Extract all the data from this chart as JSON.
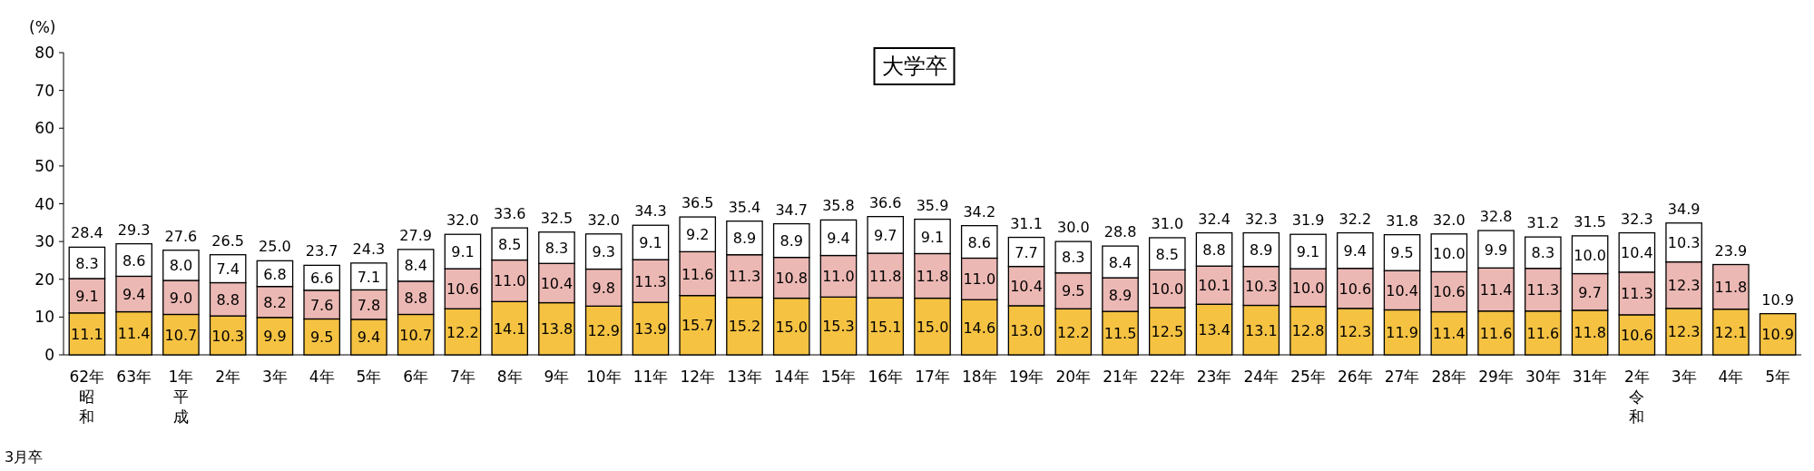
{
  "chart_data": {
    "type": "bar",
    "stacked": true,
    "title": "大学卒",
    "ylabel": "(%)",
    "annotations": [
      "3月卒"
    ],
    "categories": [
      "62年昭和",
      "63年",
      "1年平成",
      "2年",
      "3年",
      "4年",
      "5年",
      "6年",
      "7年",
      "8年",
      "9年",
      "10年",
      "11年",
      "12年",
      "13年",
      "14年",
      "15年",
      "16年",
      "17年",
      "18年",
      "19年",
      "20年",
      "21年",
      "22年",
      "23年",
      "24年",
      "25年",
      "26年",
      "27年",
      "28年",
      "29年",
      "30年",
      "31年",
      "2年令和",
      "3年",
      "4年",
      "5年"
    ],
    "series": [
      {
        "color": "#f5c242",
        "values": [
          11.1,
          11.4,
          10.7,
          10.3,
          9.9,
          9.5,
          9.4,
          10.7,
          12.2,
          14.1,
          13.8,
          12.9,
          13.9,
          15.7,
          15.2,
          15.0,
          15.3,
          15.1,
          15.0,
          14.6,
          13.0,
          12.2,
          11.5,
          12.5,
          13.4,
          13.1,
          12.8,
          12.3,
          11.9,
          11.4,
          11.6,
          11.6,
          11.8,
          10.6,
          12.3,
          12.1,
          10.9
        ],
        "value_labels": [
          "11.1",
          "11.4",
          "10.7",
          "10.3",
          "9.9",
          "9.5",
          "9.4",
          "10.7",
          "12.2",
          "14.1",
          "13.8",
          "12.9",
          "13.9",
          "15.7",
          "15.2",
          "15.0",
          "15.3",
          "15.1",
          "15.0",
          "14.6",
          "13.0",
          "12.2",
          "11.5",
          "12.5",
          "13.4",
          "13.1",
          "12.8",
          "12.3",
          "11.9",
          "11.4",
          "11.6",
          "11.6",
          "11.8",
          "10.6",
          "12.3",
          "12.1",
          "10.9"
        ]
      },
      {
        "color": "#ecb8b4",
        "values": [
          9.1,
          9.4,
          9.0,
          8.8,
          8.2,
          7.6,
          7.8,
          8.8,
          10.6,
          11.0,
          10.4,
          9.8,
          11.3,
          11.6,
          11.3,
          10.8,
          11.0,
          11.8,
          11.8,
          11.0,
          10.4,
          9.5,
          8.9,
          10.0,
          10.1,
          10.3,
          10.0,
          10.6,
          10.4,
          10.6,
          11.4,
          11.3,
          9.7,
          11.3,
          12.3,
          11.8,
          null
        ],
        "value_labels": [
          "9.1",
          "9.4",
          "9.0",
          "8.8",
          "8.2",
          "7.6",
          "7.8",
          "8.8",
          "10.6",
          "11.0",
          "10.4",
          "9.8",
          "11.3",
          "11.6",
          "11.3",
          "10.8",
          "11.0",
          "11.8",
          "11.8",
          "11.0",
          "10.4",
          "9.5",
          "8.9",
          "10.0",
          "10.1",
          "10.3",
          "10.0",
          "10.6",
          "10.4",
          "10.6",
          "11.4",
          "11.3",
          "9.7",
          "11.3",
          "12.3",
          "11.8",
          null
        ]
      },
      {
        "color": "#ffffff",
        "values": [
          8.3,
          8.6,
          8.0,
          7.4,
          6.8,
          6.6,
          7.1,
          8.4,
          9.1,
          8.5,
          8.3,
          9.3,
          9.1,
          9.2,
          8.9,
          8.9,
          9.4,
          9.7,
          9.1,
          8.6,
          7.7,
          8.3,
          8.4,
          8.5,
          8.8,
          8.9,
          9.1,
          9.4,
          9.5,
          10.0,
          9.9,
          8.3,
          10.0,
          10.4,
          10.3,
          null,
          null
        ],
        "value_labels": [
          "8.3",
          "8.6",
          "8.0",
          "7.4",
          "6.8",
          "6.6",
          "7.1",
          "8.4",
          "9.1",
          "8.5",
          "8.3",
          "9.3",
          "9.1",
          "9.2",
          "8.9",
          "8.9",
          "9.4",
          "9.7",
          "9.1",
          "8.6",
          "7.7",
          "8.3",
          "8.4",
          "8.5",
          "8.8",
          "8.9",
          "9.1",
          "9.4",
          "9.5",
          "10.0",
          "9.9",
          "8.3",
          "10.0",
          "10.4",
          "10.3",
          null,
          null
        ]
      }
    ],
    "totals": [
      "28.4",
      "29.3",
      "27.6",
      "26.5",
      "25.0",
      "23.7",
      "24.3",
      "27.9",
      "32.0",
      "33.6",
      "32.5",
      "32.0",
      "34.3",
      "36.5",
      "35.4",
      "34.7",
      "35.8",
      "36.6",
      "35.9",
      "34.2",
      "31.1",
      "30.0",
      "28.8",
      "31.0",
      "32.4",
      "32.3",
      "31.9",
      "32.2",
      "31.8",
      "32.0",
      "32.8",
      "31.2",
      "31.5",
      "32.3",
      "34.9",
      "23.9",
      "10.9"
    ],
    "ylim": [
      0,
      80
    ],
    "yticks": [
      0,
      10,
      20,
      30,
      40,
      50,
      60,
      70,
      80
    ]
  }
}
